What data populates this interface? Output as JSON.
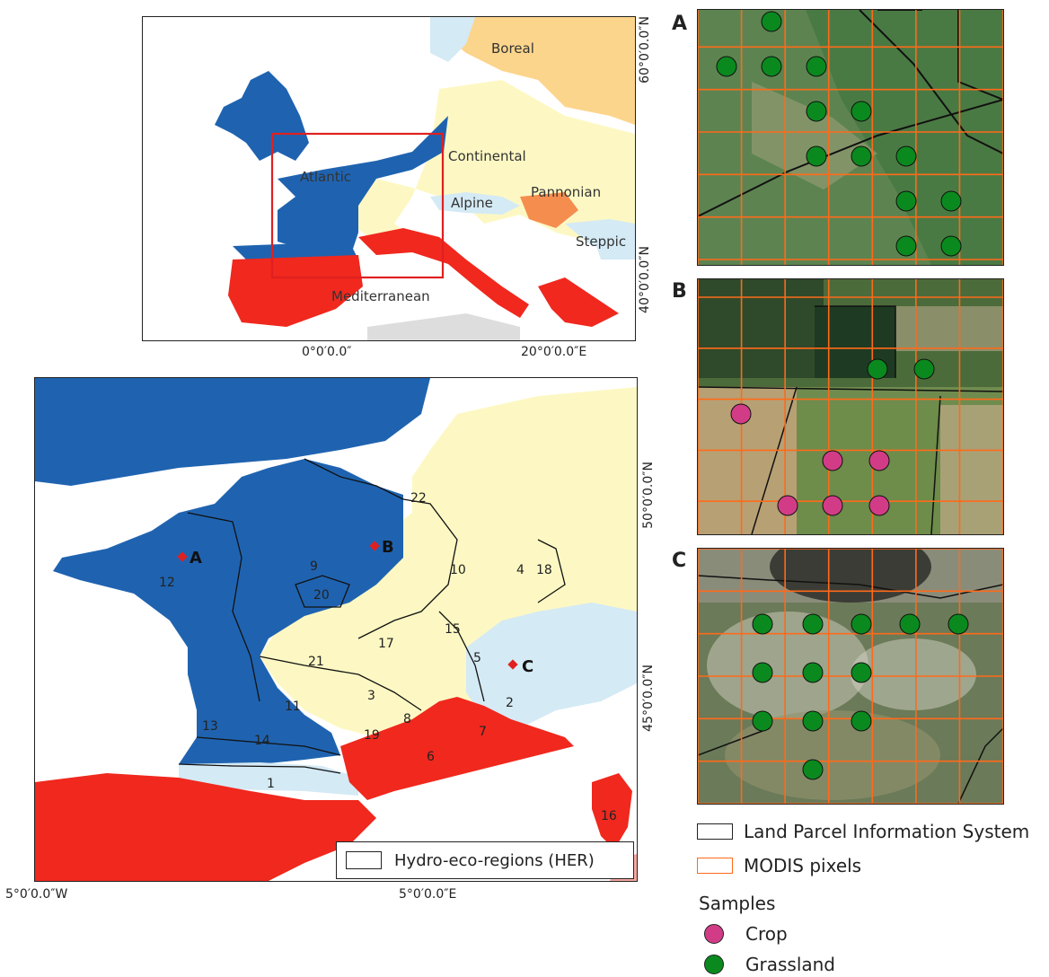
{
  "europe_map": {
    "region_labels": [
      "Boreal",
      "Continental",
      "Atlantic",
      "Alpine",
      "Pannonian",
      "Steppic",
      "Mediterranean"
    ],
    "lon_labels": [
      "0°0′0.0″",
      "20°0′0.0″E"
    ],
    "lat_labels": [
      "60°0′0.0″N",
      "40°0′0.0″N"
    ]
  },
  "france_map": {
    "her_numbers": [
      "22",
      "9",
      "20",
      "10",
      "4",
      "18",
      "12",
      "15",
      "17",
      "21",
      "5",
      "3",
      "2",
      "11",
      "8",
      "7",
      "19",
      "13",
      "14",
      "6",
      "1",
      "16"
    ],
    "sites": [
      "A",
      "B",
      "C"
    ],
    "lon_labels": [
      "5°0′0.0″W",
      "5°0′0.0″E"
    ],
    "lat_labels": [
      "50°0′0.0″N",
      "45°0′0.0″N"
    ],
    "legend_label": "Hydro-eco-regions (HER)"
  },
  "panels": [
    "A",
    "B",
    "C"
  ],
  "legend": {
    "lpis": "Land Parcel Information System",
    "modis": "MODIS pixels",
    "samples_title": "Samples",
    "crop": "Crop",
    "grassland": "Grassland"
  },
  "colors": {
    "atlantic": "#1f63b0",
    "continental": "#fdf8c3",
    "alpine": "#d4eaf5",
    "mediterranean": "#f0281e",
    "boreal": "#fcd58c",
    "pannonian": "#f58d4f",
    "modis_grid": "#ff6a1a",
    "crop": "#d23c87",
    "grassland": "#0a8a1e"
  },
  "samples": {
    "A": {
      "grassland": 14,
      "crop": 0
    },
    "B": {
      "grassland": 2,
      "crop": 6
    },
    "C": {
      "grassland": 12,
      "crop": 0
    }
  }
}
